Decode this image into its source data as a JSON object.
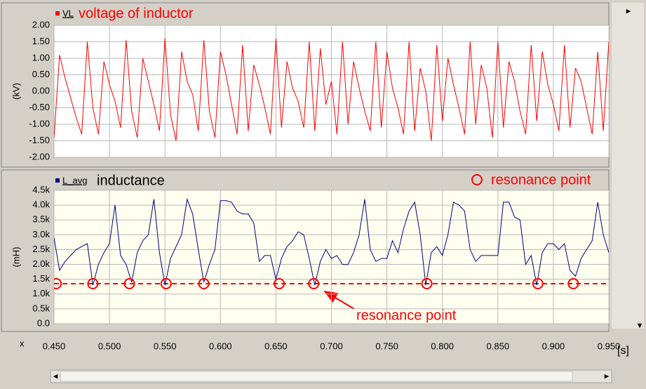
{
  "chart_data": [
    {
      "type": "line",
      "title": "voltage of inductor",
      "y_label": "(kV)",
      "x": [
        0.45,
        0.455,
        0.46,
        0.465,
        0.47,
        0.475,
        0.48,
        0.485,
        0.49,
        0.495,
        0.5,
        0.505,
        0.51,
        0.515,
        0.52,
        0.525,
        0.53,
        0.535,
        0.54,
        0.545,
        0.55,
        0.555,
        0.56,
        0.565,
        0.57,
        0.575,
        0.58,
        0.585,
        0.59,
        0.595,
        0.6,
        0.605,
        0.61,
        0.615,
        0.62,
        0.625,
        0.63,
        0.635,
        0.64,
        0.645,
        0.65,
        0.655,
        0.66,
        0.665,
        0.67,
        0.675,
        0.68,
        0.685,
        0.69,
        0.695,
        0.7,
        0.705,
        0.71,
        0.715,
        0.72,
        0.725,
        0.73,
        0.735,
        0.74,
        0.745,
        0.75,
        0.755,
        0.76,
        0.765,
        0.77,
        0.775,
        0.78,
        0.785,
        0.79,
        0.795,
        0.8,
        0.805,
        0.81,
        0.815,
        0.82,
        0.825,
        0.83,
        0.835,
        0.84,
        0.845,
        0.85,
        0.855,
        0.86,
        0.865,
        0.87,
        0.875,
        0.88,
        0.885,
        0.89,
        0.895,
        0.9,
        0.905,
        0.91,
        0.915,
        0.92,
        0.925,
        0.93,
        0.935,
        0.94,
        0.945,
        0.95
      ],
      "xlim": [
        0.45,
        0.95
      ],
      "xticks": [
        0.45,
        0.5,
        0.55,
        0.6,
        0.65,
        0.7,
        0.75,
        0.8,
        0.85,
        0.9,
        0.95
      ],
      "ylim": [
        -2,
        2
      ],
      "yticks": [
        {
          "value": 2,
          "label": "2.00"
        },
        {
          "value": 1.5,
          "label": "1.50"
        },
        {
          "value": 1,
          "label": "1.00"
        },
        {
          "value": 0.5,
          "label": "0.50"
        },
        {
          "value": 0,
          "label": "0.00"
        },
        {
          "value": -0.5,
          "label": "-0.50"
        },
        {
          "value": -1,
          "label": "-1.00"
        },
        {
          "value": -1.5,
          "label": "-1.50"
        },
        {
          "value": -2,
          "label": "-2.00"
        }
      ],
      "grid": true,
      "series": [
        {
          "name": "VL",
          "color": "#ff0000",
          "values": [
            -1.4,
            1.1,
            0.4,
            -0.2,
            -0.8,
            -1.3,
            1.5,
            -0.5,
            -1.3,
            0.9,
            0.2,
            -0.3,
            -1.1,
            1.55,
            -0.6,
            -1.4,
            1.0,
            0.3,
            -0.4,
            -1.2,
            1.6,
            -0.7,
            -1.5,
            1.2,
            0.3,
            -0.1,
            -1.2,
            1.55,
            -0.6,
            -1.4,
            1.2,
            0.5,
            -0.4,
            -1.3,
            1.4,
            -1.2,
            0.8,
            0.2,
            -0.5,
            -1.3,
            1.6,
            -1.1,
            0.9,
            0.1,
            -0.3,
            -1.1,
            1.5,
            -1.2,
            1.3,
            -0.4,
            0.3,
            -1.3,
            1.5,
            -1.0,
            0.9,
            0.1,
            -0.6,
            -1.2,
            1.5,
            -1.1,
            1.2,
            0.1,
            -0.5,
            -1.3,
            1.5,
            -1.2,
            0.7,
            0.0,
            -1.5,
            1.4,
            -0.9,
            1.0,
            0.2,
            -0.5,
            -1.3,
            1.5,
            -1.0,
            0.8,
            0.1,
            -1.4,
            1.5,
            -1.1,
            0.9,
            0.3,
            -0.6,
            -1.3,
            1.4,
            -0.9,
            1.2,
            0.2,
            -0.4,
            -1.2,
            1.4,
            -1.1,
            0.7,
            0.3,
            -0.5,
            -1.3,
            1.2,
            -1.2,
            1.5
          ]
        }
      ]
    },
    {
      "type": "line",
      "title": "inductance",
      "y_label": "(mH)",
      "x_label": "x",
      "x_unit": "[s]",
      "x": [
        0.45,
        0.455,
        0.46,
        0.465,
        0.47,
        0.475,
        0.48,
        0.485,
        0.49,
        0.495,
        0.5,
        0.505,
        0.51,
        0.515,
        0.52,
        0.525,
        0.53,
        0.535,
        0.54,
        0.545,
        0.55,
        0.555,
        0.56,
        0.565,
        0.57,
        0.575,
        0.58,
        0.585,
        0.59,
        0.595,
        0.6,
        0.605,
        0.61,
        0.615,
        0.62,
        0.625,
        0.63,
        0.635,
        0.64,
        0.645,
        0.65,
        0.655,
        0.66,
        0.665,
        0.67,
        0.675,
        0.68,
        0.685,
        0.69,
        0.695,
        0.7,
        0.705,
        0.71,
        0.715,
        0.72,
        0.725,
        0.73,
        0.735,
        0.74,
        0.745,
        0.75,
        0.755,
        0.76,
        0.765,
        0.77,
        0.775,
        0.78,
        0.785,
        0.79,
        0.795,
        0.8,
        0.805,
        0.81,
        0.815,
        0.82,
        0.825,
        0.83,
        0.835,
        0.84,
        0.845,
        0.85,
        0.855,
        0.86,
        0.865,
        0.87,
        0.875,
        0.88,
        0.885,
        0.89,
        0.895,
        0.9,
        0.905,
        0.91,
        0.915,
        0.92,
        0.925,
        0.93,
        0.935,
        0.94,
        0.945,
        0.95
      ],
      "xlim": [
        0.45,
        0.95
      ],
      "xticks": [
        {
          "value": 0.45,
          "label": "0.450"
        },
        {
          "value": 0.5,
          "label": "0.500"
        },
        {
          "value": 0.55,
          "label": "0.550"
        },
        {
          "value": 0.6,
          "label": "0.600"
        },
        {
          "value": 0.65,
          "label": "0.650"
        },
        {
          "value": 0.7,
          "label": "0.700"
        },
        {
          "value": 0.75,
          "label": "0.750"
        },
        {
          "value": 0.8,
          "label": "0.800"
        },
        {
          "value": 0.85,
          "label": "0.850"
        },
        {
          "value": 0.9,
          "label": "0.900"
        },
        {
          "value": 0.95,
          "label": "0.950"
        }
      ],
      "ylim": [
        0,
        4500
      ],
      "yticks": [
        {
          "value": 4500,
          "label": "4.5k"
        },
        {
          "value": 4000,
          "label": "4.0k"
        },
        {
          "value": 3500,
          "label": "3.5k"
        },
        {
          "value": 3000,
          "label": "3.0k"
        },
        {
          "value": 2500,
          "label": "2.5k"
        },
        {
          "value": 2000,
          "label": "2.0k"
        },
        {
          "value": 1500,
          "label": "1.5k"
        },
        {
          "value": 1000,
          "label": "1.0k"
        },
        {
          "value": 500,
          "label": "0.5k"
        },
        {
          "value": 0,
          "label": "0.0"
        }
      ],
      "grid": true,
      "hline": {
        "value": 1350,
        "color": "#ff0000"
      },
      "annotations": [
        {
          "text": "resonance point"
        }
      ],
      "series": [
        {
          "name": "L_avg",
          "color": "#000080",
          "values": [
            2900,
            1800,
            2100,
            2300,
            2500,
            2600,
            2700,
            1300,
            2000,
            2400,
            2700,
            4000,
            2300,
            2000,
            1400,
            2400,
            2800,
            3000,
            4200,
            2400,
            1300,
            2200,
            2600,
            3000,
            4200,
            3700,
            2500,
            1400,
            2000,
            2500,
            4150,
            4150,
            4100,
            3800,
            3700,
            3700,
            3400,
            2100,
            2300,
            2300,
            1500,
            2200,
            2600,
            2800,
            3100,
            3000,
            2200,
            1300,
            2100,
            2500,
            2200,
            2300,
            2000,
            2000,
            2400,
            3000,
            4200,
            2500,
            2100,
            2200,
            2200,
            2800,
            2400,
            3200,
            3800,
            4100,
            3000,
            1300,
            2400,
            2600,
            2300,
            3000,
            4100,
            4000,
            3800,
            2500,
            2100,
            2300,
            2300,
            2300,
            2300,
            4100,
            4100,
            3600,
            3500,
            2000,
            2300,
            1300,
            2400,
            2700,
            2700,
            2500,
            2700,
            1800,
            1600,
            2200,
            2500,
            2800,
            4100,
            3000,
            2400
          ]
        },
        {
          "name": "resonance point",
          "type": "scatter",
          "color": "#ff0000",
          "x": [
            0.452,
            0.485,
            0.518,
            0.551,
            0.585,
            0.653,
            0.684,
            0.786,
            0.886,
            0.918
          ],
          "values": [
            1350,
            1350,
            1350,
            1350,
            1350,
            1350,
            1350,
            1350,
            1350,
            1350
          ]
        }
      ]
    }
  ]
}
